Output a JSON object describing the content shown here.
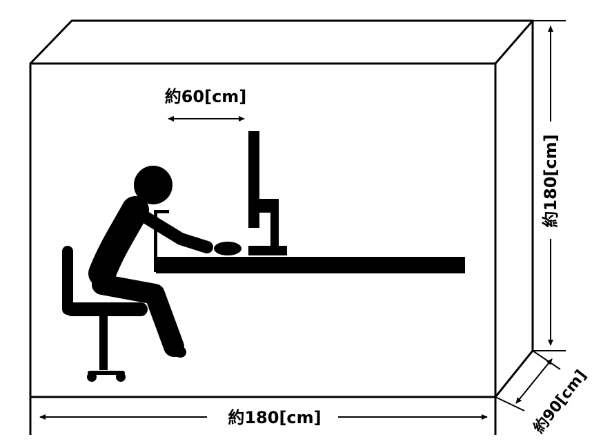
{
  "labels": {
    "viewing_distance": "約60[cm]",
    "height": "約180[cm]",
    "width": "約180[cm]",
    "depth": "約90[cm]"
  },
  "colors": {
    "line": "#000000",
    "background": "#ffffff"
  }
}
